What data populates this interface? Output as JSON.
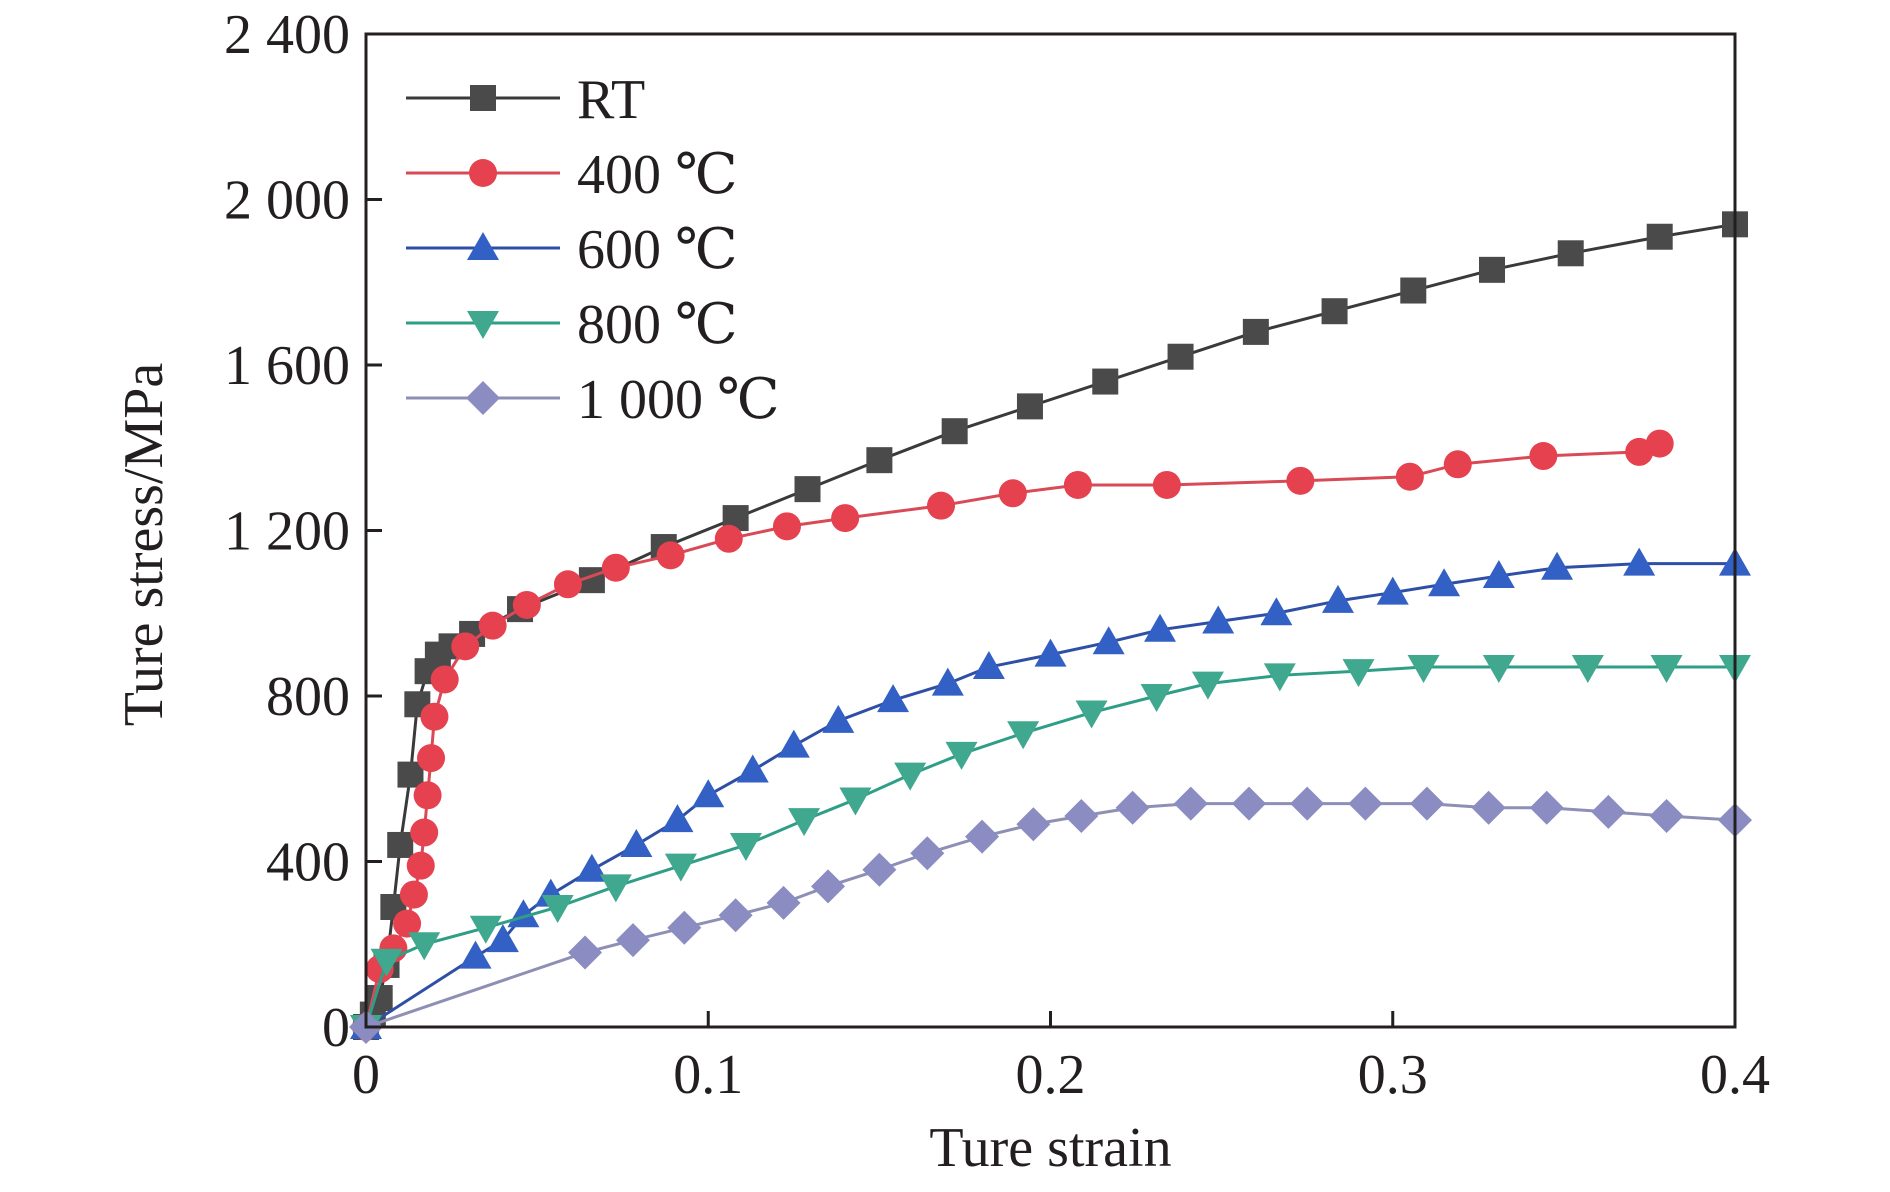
{
  "chart_data": {
    "type": "line",
    "title": "",
    "xlabel": "Ture strain",
    "ylabel": "Ture stress/MPa",
    "xlim": [
      0,
      0.4
    ],
    "ylim": [
      0,
      2400
    ],
    "x_ticks": [
      0,
      0.1,
      0.2,
      0.3,
      0.4
    ],
    "x_tick_labels": [
      "0",
      "0.1",
      "0.2",
      "0.3",
      "0.4"
    ],
    "y_ticks": [
      0,
      400,
      800,
      1200,
      1600,
      2000,
      2400
    ],
    "y_tick_labels": [
      "0",
      "400",
      "800",
      "1 200",
      "1 600",
      "2 000",
      "2 400"
    ],
    "grid": false,
    "legend_position": "top-left",
    "series": [
      {
        "name": "RT",
        "marker": "square",
        "line_color": "#3a3a3a",
        "marker_color": "#4a4a4a",
        "x": [
          0,
          0.002,
          0.004,
          0.006,
          0.008,
          0.01,
          0.013,
          0.015,
          0.018,
          0.021,
          0.025,
          0.031,
          0.045,
          0.066,
          0.087,
          0.108,
          0.129,
          0.15,
          0.172,
          0.194,
          0.216,
          0.238,
          0.26,
          0.283,
          0.306,
          0.329,
          0.352,
          0.378,
          0.4
        ],
        "y": [
          0,
          30,
          70,
          150,
          290,
          440,
          610,
          780,
          860,
          900,
          920,
          950,
          1010,
          1080,
          1160,
          1230,
          1300,
          1370,
          1440,
          1500,
          1560,
          1620,
          1680,
          1730,
          1780,
          1830,
          1870,
          1910,
          1940
        ]
      },
      {
        "name": "400 ℃",
        "marker": "circle",
        "line_color": "#d94a57",
        "marker_color": "#e5414f",
        "x": [
          0,
          0.004,
          0.008,
          0.012,
          0.014,
          0.016,
          0.017,
          0.018,
          0.019,
          0.02,
          0.023,
          0.029,
          0.037,
          0.047,
          0.059,
          0.073,
          0.089,
          0.106,
          0.123,
          0.14,
          0.168,
          0.189,
          0.208,
          0.234,
          0.273,
          0.305,
          0.319,
          0.344,
          0.372,
          0.378
        ],
        "y": [
          0,
          140,
          190,
          250,
          320,
          390,
          470,
          560,
          650,
          750,
          840,
          920,
          970,
          1020,
          1070,
          1110,
          1140,
          1180,
          1210,
          1230,
          1260,
          1290,
          1310,
          1310,
          1320,
          1330,
          1360,
          1380,
          1390,
          1410
        ]
      },
      {
        "name": "600 ℃",
        "marker": "triangle-up",
        "line_color": "#2f4fa6",
        "marker_color": "#3360c4",
        "x": [
          0,
          0.032,
          0.04,
          0.046,
          0.054,
          0.066,
          0.079,
          0.091,
          0.1,
          0.113,
          0.125,
          0.138,
          0.154,
          0.17,
          0.182,
          0.2,
          0.217,
          0.232,
          0.249,
          0.266,
          0.284,
          0.3,
          0.315,
          0.331,
          0.348,
          0.372,
          0.4
        ],
        "y": [
          0,
          170,
          210,
          270,
          320,
          380,
          440,
          500,
          560,
          620,
          680,
          740,
          790,
          830,
          870,
          900,
          930,
          960,
          980,
          1000,
          1030,
          1050,
          1070,
          1090,
          1110,
          1120,
          1120
        ]
      },
      {
        "name": "800 ℃",
        "marker": "triangle-down",
        "line_color": "#2f9e86",
        "marker_color": "#3fa88e",
        "x": [
          0,
          0.006,
          0.017,
          0.035,
          0.056,
          0.073,
          0.092,
          0.111,
          0.128,
          0.143,
          0.159,
          0.174,
          0.192,
          0.212,
          0.231,
          0.246,
          0.267,
          0.29,
          0.309,
          0.331,
          0.357,
          0.38,
          0.4
        ],
        "y": [
          0,
          160,
          200,
          240,
          290,
          340,
          390,
          440,
          500,
          550,
          610,
          660,
          710,
          760,
          800,
          830,
          850,
          860,
          870,
          870,
          870,
          870,
          870
        ]
      },
      {
        "name": "1 000 ℃",
        "marker": "diamond",
        "line_color": "#8e8fb5",
        "marker_color": "#8a8cc2",
        "x": [
          0,
          0.064,
          0.078,
          0.093,
          0.108,
          0.122,
          0.135,
          0.15,
          0.164,
          0.18,
          0.195,
          0.209,
          0.224,
          0.241,
          0.258,
          0.275,
          0.292,
          0.31,
          0.328,
          0.345,
          0.363,
          0.38,
          0.4
        ],
        "y": [
          0,
          180,
          210,
          240,
          270,
          300,
          340,
          380,
          420,
          460,
          490,
          510,
          530,
          540,
          540,
          540,
          540,
          540,
          530,
          530,
          520,
          510,
          500
        ]
      }
    ]
  }
}
